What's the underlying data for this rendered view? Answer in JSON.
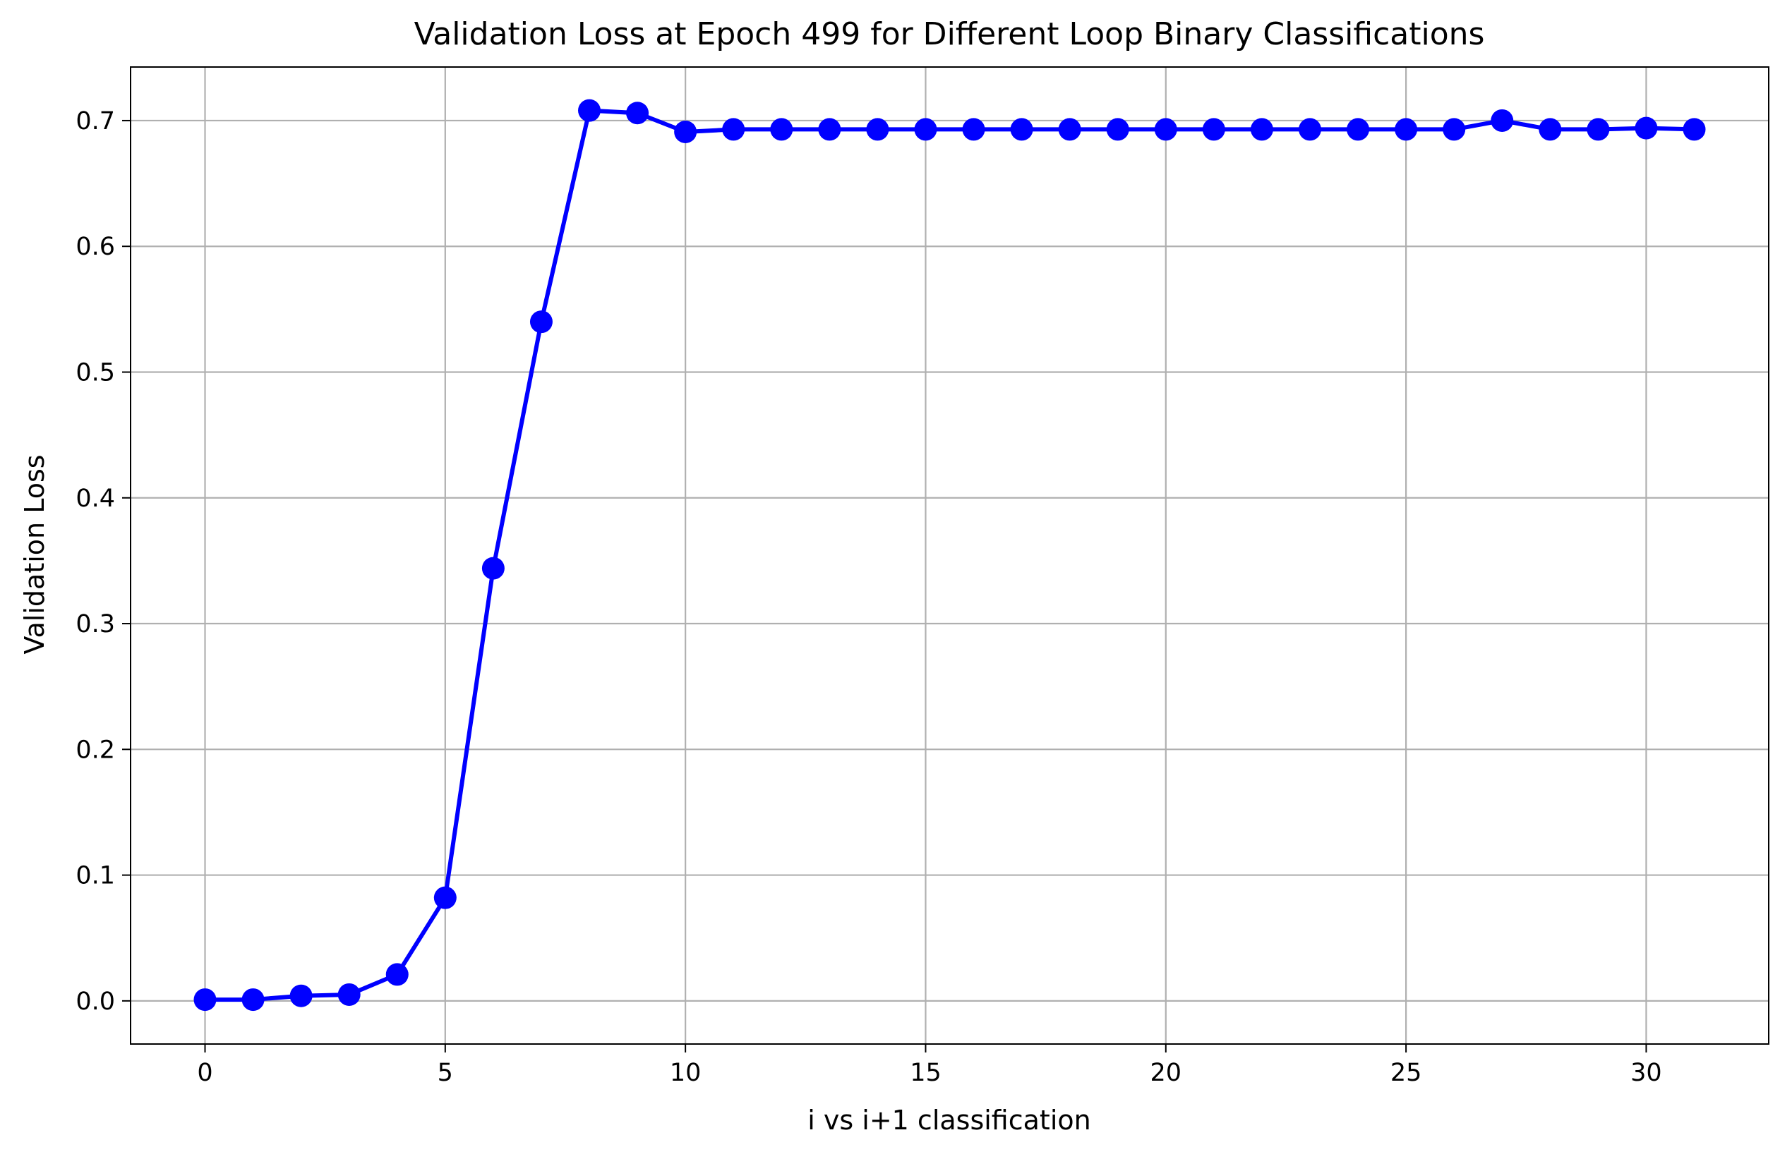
{
  "chart_data": {
    "type": "line",
    "title": "Validation Loss at Epoch 499 for Different Loop Binary Classifications",
    "xlabel": "i vs i+1 classification",
    "ylabel": "Validation Loss",
    "xlim": [
      -1.55,
      32.55
    ],
    "ylim": [
      -0.0343,
      0.7426
    ],
    "xticks": [
      0,
      5,
      10,
      15,
      20,
      25,
      30
    ],
    "xtick_labels": [
      "0",
      "5",
      "10",
      "15",
      "20",
      "25",
      "30"
    ],
    "yticks": [
      0.0,
      0.1,
      0.2,
      0.3,
      0.4,
      0.5,
      0.6,
      0.7
    ],
    "ytick_labels": [
      "0.0",
      "0.1",
      "0.2",
      "0.3",
      "0.4",
      "0.5",
      "0.6",
      "0.7"
    ],
    "grid": true,
    "legend": "none",
    "color": "#0000ff",
    "marker": "circle",
    "series": [
      {
        "x": [
          0,
          1,
          2,
          3,
          4,
          5,
          6,
          7,
          8,
          9,
          10,
          11,
          12,
          13,
          14,
          15,
          16,
          17,
          18,
          19,
          20,
          21,
          22,
          23,
          24,
          25,
          26,
          27,
          28,
          29,
          30,
          31
        ],
        "values": [
          0.001,
          0.001,
          0.004,
          0.005,
          0.021,
          0.082,
          0.344,
          0.54,
          0.708,
          0.706,
          0.691,
          0.693,
          0.693,
          0.693,
          0.693,
          0.693,
          0.693,
          0.693,
          0.693,
          0.693,
          0.693,
          0.693,
          0.693,
          0.693,
          0.693,
          0.693,
          0.693,
          0.7,
          0.693,
          0.693,
          0.694,
          0.693
        ]
      }
    ]
  }
}
